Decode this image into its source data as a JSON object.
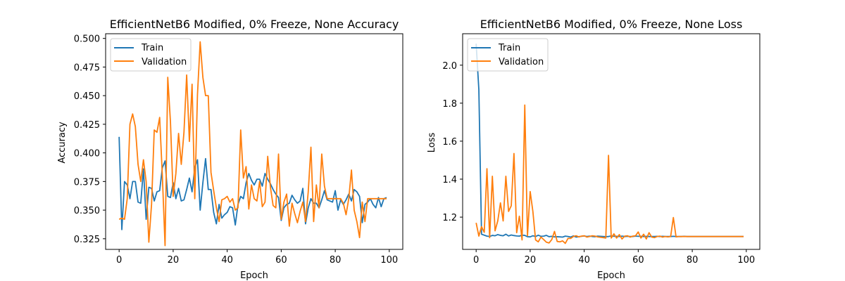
{
  "chart_data": [
    {
      "type": "line",
      "title": "EfficientNetB6 Modified, 0% Freeze, None Accuracy",
      "xlabel": "Epoch",
      "ylabel": "Accuracy",
      "xlim": [
        -5,
        105
      ],
      "ylim": [
        0.3157,
        0.5041
      ],
      "xticks": [
        0,
        20,
        40,
        60,
        80,
        100
      ],
      "yticks": [
        0.325,
        0.35,
        0.375,
        0.4,
        0.425,
        0.45,
        0.475,
        0.5
      ],
      "ytick_labels": [
        "0.325",
        "0.350",
        "0.375",
        "0.400",
        "0.425",
        "0.450",
        "0.475",
        "0.500"
      ],
      "grid": false,
      "legend": "top-left",
      "series": [
        {
          "name": "Train",
          "color": "#1f77b4",
          "x": [
            0,
            1,
            2,
            3,
            4,
            5,
            6,
            7,
            8,
            9,
            10,
            11,
            12,
            13,
            14,
            15,
            16,
            17,
            18,
            19,
            20,
            21,
            22,
            23,
            24,
            25,
            26,
            27,
            28,
            29,
            30,
            31,
            32,
            33,
            34,
            35,
            36,
            37,
            38,
            39,
            40,
            41,
            42,
            43,
            44,
            45,
            46,
            47,
            48,
            49,
            50,
            51,
            52,
            53,
            54,
            55,
            56,
            57,
            58,
            59,
            60,
            61,
            62,
            63,
            64,
            65,
            66,
            67,
            68,
            69,
            70,
            71,
            72,
            73,
            74,
            75,
            76,
            77,
            78,
            79,
            80,
            81,
            82,
            83,
            84,
            85,
            86,
            87,
            88,
            89,
            90,
            91,
            92,
            93,
            94,
            95,
            96,
            97,
            98,
            99
          ],
          "values": [
            0.414,
            0.333,
            0.375,
            0.372,
            0.36,
            0.375,
            0.375,
            0.357,
            0.356,
            0.386,
            0.342,
            0.37,
            0.369,
            0.358,
            0.366,
            0.367,
            0.387,
            0.393,
            0.362,
            0.361,
            0.374,
            0.36,
            0.369,
            0.358,
            0.359,
            0.368,
            0.378,
            0.366,
            0.387,
            0.394,
            0.35,
            0.374,
            0.395,
            0.368,
            0.368,
            0.348,
            0.338,
            0.355,
            0.343,
            0.346,
            0.348,
            0.353,
            0.352,
            0.337,
            0.355,
            0.362,
            0.36,
            0.374,
            0.382,
            0.376,
            0.372,
            0.377,
            0.377,
            0.371,
            0.382,
            0.377,
            0.373,
            0.368,
            0.364,
            0.361,
            0.341,
            0.352,
            0.355,
            0.356,
            0.363,
            0.359,
            0.356,
            0.358,
            0.369,
            0.338,
            0.352,
            0.36,
            0.356,
            0.356,
            0.352,
            0.359,
            0.367,
            0.359,
            0.358,
            0.357,
            0.367,
            0.35,
            0.359,
            0.355,
            0.359,
            0.364,
            0.358,
            0.368,
            0.366,
            0.362,
            0.339,
            0.355,
            0.357,
            0.36,
            0.355,
            0.352,
            0.361,
            0.353,
            0.36,
            0.361
          ]
        },
        {
          "name": "Validation",
          "color": "#ff7f0e",
          "x": [
            0,
            1,
            2,
            3,
            4,
            5,
            6,
            7,
            8,
            9,
            10,
            11,
            12,
            13,
            14,
            15,
            16,
            17,
            18,
            19,
            20,
            21,
            22,
            23,
            24,
            25,
            26,
            27,
            28,
            29,
            30,
            31,
            32,
            33,
            34,
            35,
            36,
            37,
            38,
            39,
            40,
            41,
            42,
            43,
            44,
            45,
            46,
            47,
            48,
            49,
            50,
            51,
            52,
            53,
            54,
            55,
            56,
            57,
            58,
            59,
            60,
            61,
            62,
            63,
            64,
            65,
            66,
            67,
            68,
            69,
            70,
            71,
            72,
            73,
            74,
            75,
            76,
            77,
            78,
            79,
            80,
            81,
            82,
            83,
            84,
            85,
            86,
            87,
            88,
            89,
            90,
            91,
            92,
            93,
            94,
            95,
            96,
            97,
            98,
            99
          ],
          "values": [
            0.342,
            0.343,
            0.342,
            0.36,
            0.425,
            0.434,
            0.423,
            0.39,
            0.375,
            0.394,
            0.375,
            0.322,
            0.355,
            0.42,
            0.418,
            0.431,
            0.38,
            0.319,
            0.466,
            0.427,
            0.362,
            0.382,
            0.417,
            0.39,
            0.418,
            0.468,
            0.41,
            0.46,
            0.36,
            0.451,
            0.497,
            0.466,
            0.45,
            0.45,
            0.383,
            0.367,
            0.352,
            0.34,
            0.359,
            0.36,
            0.362,
            0.357,
            0.36,
            0.35,
            0.352,
            0.42,
            0.378,
            0.388,
            0.351,
            0.372,
            0.36,
            0.358,
            0.375,
            0.353,
            0.357,
            0.397,
            0.37,
            0.354,
            0.352,
            0.399,
            0.342,
            0.357,
            0.364,
            0.336,
            0.356,
            0.347,
            0.339,
            0.349,
            0.357,
            0.34,
            0.366,
            0.405,
            0.34,
            0.372,
            0.352,
            0.399,
            0.371,
            0.36,
            0.36,
            0.36,
            0.36,
            0.36,
            0.36,
            0.356,
            0.346,
            0.36,
            0.385,
            0.35,
            0.34,
            0.326,
            0.357,
            0.34,
            0.36,
            0.36,
            0.36,
            0.36,
            0.36,
            0.36,
            0.36,
            0.36
          ]
        }
      ]
    },
    {
      "type": "line",
      "title": "EfficientNetB6 Modified, 0% Freeze, None Loss",
      "xlabel": "Epoch",
      "ylabel": "Loss",
      "xlim": [
        -5,
        105
      ],
      "ylim": [
        1.0302,
        2.1656
      ],
      "xticks": [
        0,
        20,
        40,
        60,
        80,
        100
      ],
      "yticks": [
        1.2,
        1.4,
        1.6,
        1.8,
        2.0
      ],
      "ytick_labels": [
        "1.2",
        "1.4",
        "1.6",
        "1.8",
        "2.0"
      ],
      "grid": false,
      "legend": "top-left",
      "series": [
        {
          "name": "Train",
          "color": "#1f77b4",
          "x": [
            0,
            1,
            2,
            3,
            4,
            5,
            6,
            7,
            8,
            9,
            10,
            11,
            12,
            13,
            14,
            15,
            16,
            17,
            18,
            19,
            20,
            21,
            22,
            23,
            24,
            25,
            26,
            27,
            28,
            29,
            30,
            31,
            32,
            33,
            34,
            35,
            36,
            37,
            38,
            39,
            40,
            41,
            42,
            43,
            44,
            45,
            46,
            47,
            48,
            49,
            50,
            51,
            52,
            53,
            54,
            55,
            56,
            57,
            58,
            59,
            60,
            61,
            62,
            63,
            64,
            65,
            66,
            67,
            68,
            69,
            70,
            71,
            72,
            73,
            74,
            75,
            76,
            77,
            78,
            79,
            80,
            81,
            82,
            83,
            84,
            85,
            86,
            87,
            88,
            89,
            90,
            91,
            92,
            93,
            94,
            95,
            96,
            97,
            98,
            99
          ],
          "values": [
            2.113,
            1.872,
            1.11,
            1.105,
            1.1,
            1.098,
            1.104,
            1.102,
            1.108,
            1.104,
            1.102,
            1.11,
            1.101,
            1.106,
            1.103,
            1.101,
            1.1,
            1.105,
            1.104,
            1.097,
            1.096,
            1.102,
            1.098,
            1.105,
            1.099,
            1.1,
            1.104,
            1.097,
            1.099,
            1.096,
            1.097,
            1.096,
            1.095,
            1.1,
            1.098,
            1.095,
            1.101,
            1.095,
            1.097,
            1.099,
            1.101,
            1.098,
            1.1,
            1.098,
            1.097,
            1.1,
            1.099,
            1.098,
            1.097,
            1.098,
            1.101,
            1.099,
            1.099,
            1.098,
            1.1,
            1.098,
            1.099,
            1.098,
            1.098,
            1.1,
            1.099,
            1.099,
            1.098,
            1.099,
            1.098,
            1.098,
            1.098,
            1.099,
            1.098,
            1.099,
            1.098,
            1.098,
            1.098,
            1.099,
            1.098,
            1.098,
            1.098,
            1.099,
            1.098,
            1.098,
            1.098,
            1.098,
            1.098,
            1.098,
            1.098,
            1.098,
            1.098,
            1.098,
            1.098,
            1.098,
            1.098,
            1.098,
            1.098,
            1.098,
            1.098,
            1.098,
            1.098,
            1.098,
            1.098,
            1.098
          ]
        },
        {
          "name": "Validation",
          "color": "#ff7f0e",
          "x": [
            0,
            1,
            2,
            3,
            4,
            5,
            6,
            7,
            8,
            9,
            10,
            11,
            12,
            13,
            14,
            15,
            16,
            17,
            18,
            19,
            20,
            21,
            22,
            23,
            24,
            25,
            26,
            27,
            28,
            29,
            30,
            31,
            32,
            33,
            34,
            35,
            36,
            37,
            38,
            39,
            40,
            41,
            42,
            43,
            44,
            45,
            46,
            47,
            48,
            49,
            50,
            51,
            52,
            53,
            54,
            55,
            56,
            57,
            58,
            59,
            60,
            61,
            62,
            63,
            64,
            65,
            66,
            67,
            68,
            69,
            70,
            71,
            72,
            73,
            74,
            75,
            76,
            77,
            78,
            79,
            80,
            81,
            82,
            83,
            84,
            85,
            86,
            87,
            88,
            89,
            90,
            91,
            92,
            93,
            94,
            95,
            96,
            97,
            98,
            99
          ],
          "values": [
            1.17,
            1.1,
            1.15,
            1.12,
            1.455,
            1.092,
            1.415,
            1.128,
            1.18,
            1.275,
            1.18,
            1.415,
            1.23,
            1.26,
            1.535,
            1.118,
            1.205,
            1.08,
            1.79,
            1.102,
            1.335,
            1.23,
            1.08,
            1.07,
            1.095,
            1.082,
            1.068,
            1.064,
            1.082,
            1.125,
            1.072,
            1.07,
            1.075,
            1.062,
            1.088,
            1.088,
            1.098,
            1.102,
            1.096,
            1.1,
            1.102,
            1.095,
            1.098,
            1.102,
            1.1,
            1.096,
            1.094,
            1.092,
            1.09,
            1.525,
            1.09,
            1.112,
            1.09,
            1.108,
            1.085,
            1.1,
            1.102,
            1.095,
            1.1,
            1.102,
            1.122,
            1.09,
            1.11,
            1.085,
            1.118,
            1.095,
            1.092,
            1.098,
            1.1,
            1.095,
            1.098,
            1.096,
            1.098,
            1.198,
            1.096,
            1.098,
            1.098,
            1.098,
            1.098,
            1.098,
            1.098,
            1.098,
            1.098,
            1.098,
            1.098,
            1.098,
            1.098,
            1.098,
            1.098,
            1.098,
            1.098,
            1.098,
            1.098,
            1.098,
            1.098,
            1.098,
            1.098,
            1.098,
            1.098,
            1.098
          ]
        }
      ]
    }
  ]
}
